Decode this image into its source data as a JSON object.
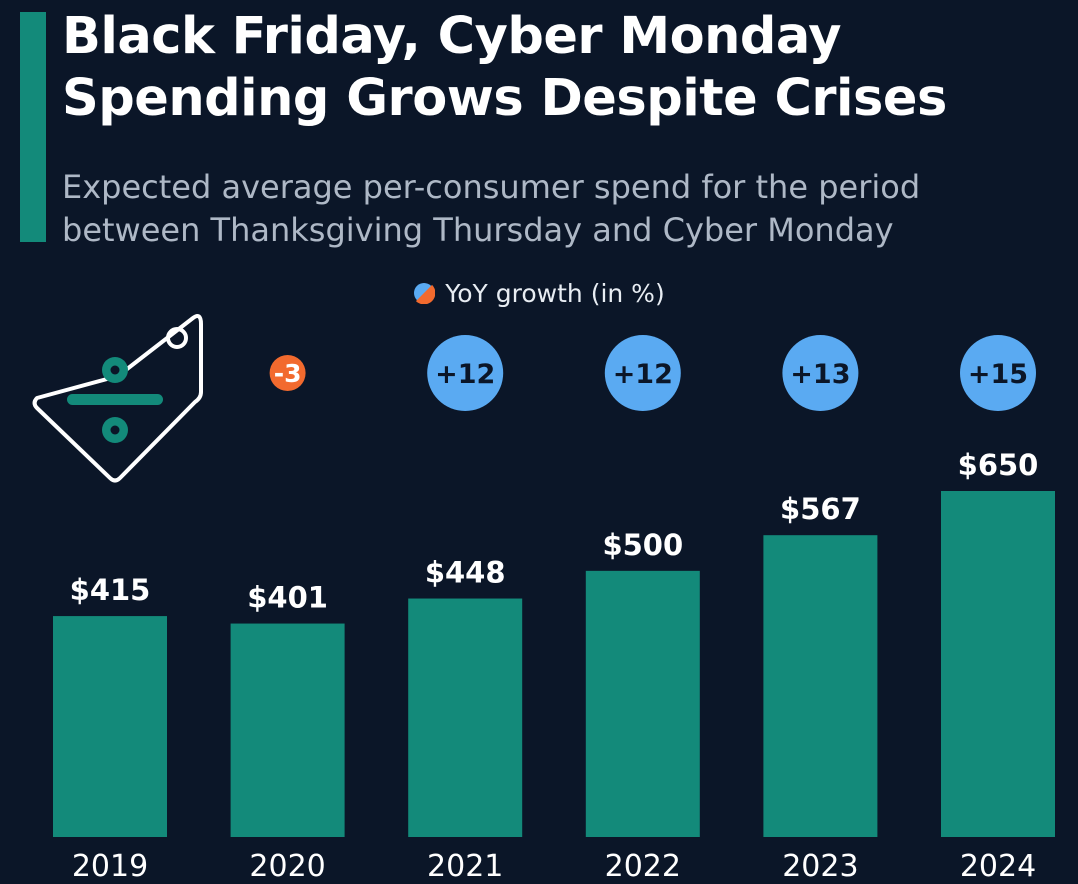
{
  "header": {
    "title_line1": "Black Friday, Cyber Monday",
    "title_line2": "Spending Grows Despite Crises",
    "subtitle_line1": "Expected average per-consumer spend for the period",
    "subtitle_line2": "between Thanksgiving Thursday and Cyber Monday"
  },
  "legend": {
    "label": "YoY growth (in %)",
    "icon": "half-blue-half-orange-circle-icon"
  },
  "icons": {
    "decoration": "price-tag-divide-icon"
  },
  "colors": {
    "background": "#0b1628",
    "bar": "#138a7a",
    "positive_growth": "#5aaaf2",
    "negative_growth": "#f26a2e",
    "text": "#ffffff",
    "subtitle": "#aeb8c6"
  },
  "chart_data": {
    "type": "bar",
    "title": "Black Friday, Cyber Monday Spending Grows Despite Crises",
    "subtitle": "Expected average per-consumer spend for the period between Thanksgiving Thursday and Cyber Monday",
    "categories": [
      "2019",
      "2020",
      "2021",
      "2022",
      "2023",
      "2024"
    ],
    "values": [
      415,
      401,
      448,
      500,
      567,
      650
    ],
    "value_labels": [
      "$415",
      "$401",
      "$448",
      "$500",
      "$567",
      "$650"
    ],
    "yoy_growth_labels": [
      "",
      "-3",
      "+12",
      "+12",
      "+13",
      "+15"
    ],
    "yoy_growth_values": [
      null,
      -3,
      12,
      12,
      13,
      15
    ],
    "xlabel": "",
    "ylabel": "",
    "ylim": [
      0,
      650
    ],
    "grid": false,
    "legend_placement": "top-center"
  }
}
